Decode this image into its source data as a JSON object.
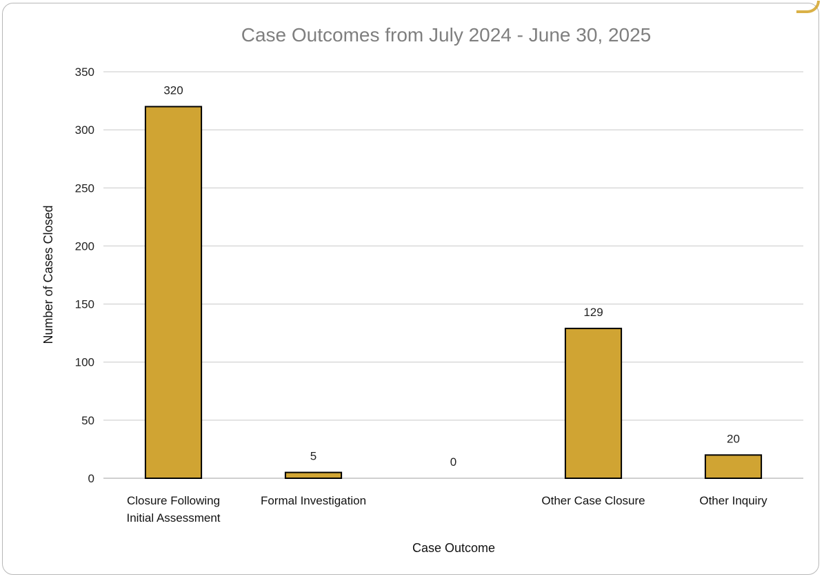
{
  "colors": {
    "bar_fill": "#d0a433",
    "bar_stroke": "#000000",
    "gridline": "#c8c8c8",
    "title": "#7f7f7f",
    "frame": "#b7b7b7"
  },
  "chart_data": {
    "type": "bar",
    "title": "Case Outcomes from July 2024 - June 30, 2025",
    "xlabel": "Case Outcome",
    "ylabel": "Number of Cases Closed",
    "ylim": [
      0,
      350
    ],
    "yticks": [
      0,
      50,
      100,
      150,
      200,
      250,
      300,
      350
    ],
    "yticks_labels": [
      "0",
      "50",
      "100",
      "150",
      "200",
      "250",
      "300",
      "350"
    ],
    "grid": true,
    "categories": [
      [
        "Closure Following",
        "Initial Assessment"
      ],
      [
        "Formal Investigation"
      ],
      [
        ""
      ],
      [
        "Other Case Closure"
      ],
      [
        "Other Inquiry"
      ]
    ],
    "values": [
      320,
      5,
      0,
      129,
      20
    ],
    "data_labels": [
      "320",
      "5",
      "0",
      "129",
      "20"
    ]
  }
}
